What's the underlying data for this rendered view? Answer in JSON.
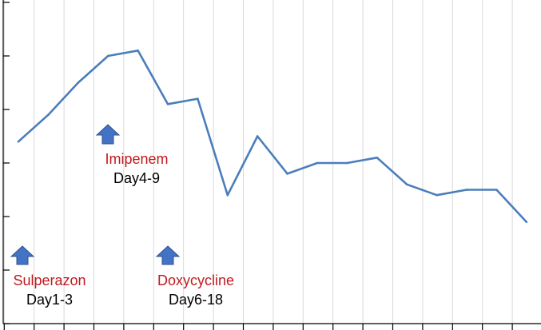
{
  "chart_data": {
    "type": "line",
    "title": "",
    "xlabel": "",
    "ylabel": "",
    "x": [
      1,
      2,
      3,
      4,
      5,
      6,
      7,
      8,
      9,
      10,
      11,
      12,
      13,
      14,
      15,
      16,
      17,
      18
    ],
    "ylim": [
      0,
      6
    ],
    "grid": "vertical",
    "series": [
      {
        "values": [
          3.4,
          3.9,
          4.5,
          5.0,
          5.1,
          4.1,
          4.2,
          2.4,
          3.5,
          2.8,
          3.0,
          3.0,
          3.1,
          2.6,
          2.4,
          2.5,
          2.5,
          1.9
        ]
      }
    ],
    "line_color": "#4a7ebb",
    "arrow_color": "#4472c4",
    "annotations": [
      {
        "drug": "Sulperazon",
        "days": "Day1-3",
        "day": 1
      },
      {
        "drug": "Imipenem",
        "days": "Day4-9",
        "day": 4
      },
      {
        "drug": "Doxycycline",
        "days": "Day6-18",
        "day": 6
      }
    ]
  }
}
